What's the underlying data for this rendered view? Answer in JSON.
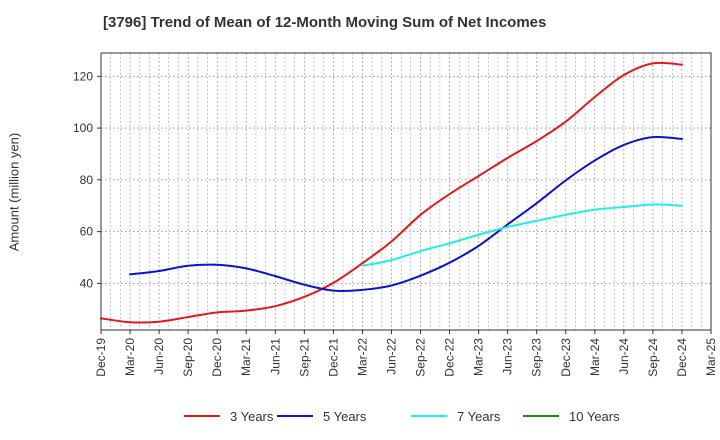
{
  "chart_data": {
    "type": "line",
    "title": "[3796]  Trend of Mean of 12-Month Moving Sum of Net Incomes",
    "xlabel": "",
    "ylabel": "Amount (million yen)",
    "ylim": [
      22,
      129
    ],
    "yticks": [
      40,
      60,
      80,
      100,
      120
    ],
    "x": [
      "Dec-19",
      "Mar-20",
      "Jun-20",
      "Sep-20",
      "Dec-20",
      "Mar-21",
      "Jun-21",
      "Sep-21",
      "Dec-21",
      "Mar-22",
      "Jun-22",
      "Sep-22",
      "Dec-22",
      "Mar-23",
      "Jun-23",
      "Sep-23",
      "Dec-23",
      "Mar-24",
      "Jun-24",
      "Sep-24",
      "Dec-24",
      "Mar-25"
    ],
    "grid": true,
    "legend_position": "bottom",
    "series": [
      {
        "name": "3 Years",
        "color": "#e31a1c",
        "values": [
          26.5,
          25.0,
          25.2,
          27.0,
          28.8,
          29.5,
          31.2,
          34.8,
          40.2,
          47.8,
          56.2,
          66.5,
          74.5,
          81.5,
          88.5,
          95.0,
          102.5,
          112.0,
          120.5,
          125.0,
          124.5,
          null
        ]
      },
      {
        "name": "5 Years",
        "color": "#0a14c8",
        "values": [
          null,
          43.5,
          44.8,
          46.8,
          47.2,
          45.8,
          42.8,
          39.5,
          37.2,
          37.5,
          39.2,
          43.0,
          48.0,
          54.5,
          62.8,
          71.0,
          79.8,
          87.5,
          93.5,
          96.5,
          95.8,
          null
        ]
      },
      {
        "name": "7 Years",
        "color": "#22ecec",
        "values": [
          null,
          null,
          null,
          null,
          null,
          null,
          null,
          null,
          null,
          46.8,
          49.0,
          52.5,
          55.5,
          58.8,
          61.8,
          64.2,
          66.5,
          68.5,
          69.5,
          70.5,
          70.0,
          null
        ]
      },
      {
        "name": "10 Years",
        "color": "#1b8a1b",
        "values": [
          null,
          null,
          null,
          null,
          null,
          null,
          null,
          null,
          null,
          null,
          null,
          null,
          null,
          null,
          null,
          null,
          null,
          null,
          null,
          null,
          null,
          null
        ]
      }
    ]
  }
}
